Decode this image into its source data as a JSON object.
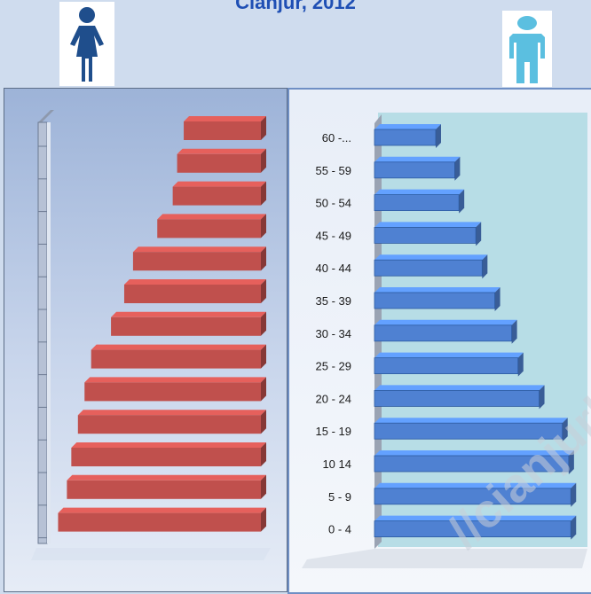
{
  "title": "Cianjur, 2012",
  "icons": {
    "female": "female-person-icon",
    "male": "male-person-icon"
  },
  "colors": {
    "female_bar": "#c0504d",
    "male_bar": "#4f81d2",
    "female_icon": "#1f4e8c",
    "male_icon": "#5bbfe0"
  },
  "chart_data": [
    {
      "type": "bar",
      "orientation": "horizontal",
      "series": [
        {
          "name": "",
          "values": [
            9200,
            8800,
            8600,
            8300,
            8000,
            7700,
            6800,
            6200,
            5800,
            4700,
            4000,
            3800,
            3500
          ]
        }
      ],
      "categories": [
        "0 - 4",
        "5 - 9",
        "10 14",
        "15 - 19",
        "20 - 24",
        "25 - 29",
        "30 - 34",
        "35 - 39",
        "40 - 44",
        "45 - 49",
        "50 - 54",
        "55 - 59",
        "60 -..."
      ],
      "direction": "right-to-left",
      "xlim": [
        0,
        9500
      ],
      "grid": false,
      "title": ""
    },
    {
      "type": "bar",
      "orientation": "horizontal",
      "categories": [
        "0 - 4",
        "5 - 9",
        "10 14",
        "15 - 19",
        "20 - 24",
        "25 - 29",
        "30 - 34",
        "35 - 39",
        "40 - 44",
        "45 - 49",
        "50 - 54",
        "55 - 59",
        "60 -..."
      ],
      "series": [
        {
          "name": "",
          "values": [
            9300,
            9300,
            9200,
            8900,
            7800,
            6800,
            6500,
            5700,
            5100,
            4800,
            4000,
            3800,
            2900
          ]
        }
      ],
      "direction": "left-to-right",
      "xlim": [
        0,
        9500
      ],
      "grid": false,
      "title": ""
    }
  ],
  "watermark": "//cianjurk"
}
